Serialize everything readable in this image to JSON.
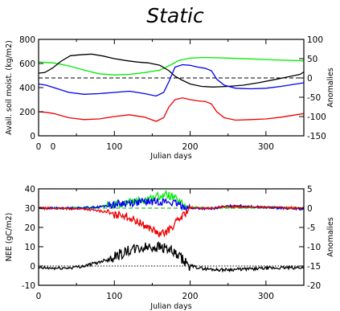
{
  "title": "Static",
  "chart_data": [
    {
      "type": "line",
      "name": "top-panel",
      "xlabel": "Julian days",
      "ylabel": "Avail. soil moist. (kg/m2)",
      "ylabel_right": "Anomalies",
      "xlim": [
        0,
        350
      ],
      "ylim": [
        0,
        800
      ],
      "ylim_right": [
        -150,
        100
      ],
      "x_ticks": [
        "0",
        "100",
        "200",
        "300"
      ],
      "extra_x_tick_label": "0",
      "y_ticks": [
        "0",
        "200",
        "400",
        "600",
        "800"
      ],
      "y_ticks_right": [
        "-150",
        "-100",
        "-50",
        "0",
        "50",
        "100"
      ],
      "reference_line": {
        "axis": "right",
        "value": 0,
        "style": "dashed",
        "color": "#000000"
      },
      "series": [
        {
          "color": "#00ee00",
          "axis": "left",
          "x": [
            0,
            20,
            40,
            60,
            80,
            100,
            120,
            140,
            160,
            175,
            185,
            200,
            220,
            250,
            280,
            310,
            350
          ],
          "y": [
            612,
            605,
            580,
            545,
            515,
            505,
            510,
            525,
            545,
            590,
            625,
            645,
            650,
            645,
            638,
            630,
            622
          ]
        },
        {
          "color": "#000000",
          "axis": "left",
          "x": [
            0,
            8,
            18,
            30,
            42,
            55,
            70,
            85,
            100,
            115,
            130,
            145,
            160,
            172,
            180,
            190,
            200,
            215,
            230,
            250,
            270,
            290,
            310,
            330,
            345,
            350
          ],
          "y": [
            520,
            525,
            560,
            620,
            665,
            672,
            678,
            662,
            640,
            625,
            612,
            605,
            585,
            540,
            495,
            460,
            430,
            410,
            405,
            410,
            420,
            440,
            465,
            490,
            510,
            530
          ]
        },
        {
          "color": "#0000ee",
          "axis": "left",
          "x": [
            0,
            10,
            20,
            40,
            60,
            80,
            100,
            120,
            140,
            155,
            165,
            172,
            180,
            190,
            200,
            210,
            220,
            228,
            235,
            245,
            260,
            280,
            300,
            320,
            340,
            350
          ],
          "y": [
            430,
            420,
            400,
            360,
            345,
            350,
            360,
            370,
            350,
            330,
            360,
            450,
            570,
            590,
            585,
            570,
            560,
            540,
            470,
            420,
            395,
            390,
            395,
            410,
            430,
            440
          ]
        },
        {
          "color": "#ee0000",
          "axis": "left",
          "x": [
            0,
            10,
            20,
            40,
            60,
            80,
            100,
            120,
            140,
            155,
            165,
            172,
            180,
            190,
            200,
            210,
            220,
            228,
            235,
            245,
            260,
            280,
            300,
            320,
            340,
            350
          ],
          "y": [
            200,
            195,
            185,
            150,
            135,
            140,
            160,
            175,
            155,
            120,
            150,
            240,
            300,
            315,
            300,
            290,
            285,
            265,
            200,
            150,
            130,
            135,
            140,
            155,
            175,
            185
          ]
        }
      ]
    },
    {
      "type": "line",
      "name": "bottom-panel",
      "xlabel": "Julian days",
      "ylabel": "NEE (gC/m2)",
      "ylabel_right": "Anomalies",
      "xlim": [
        0,
        350
      ],
      "ylim": [
        -10,
        40
      ],
      "ylim_right": [
        -20,
        5
      ],
      "x_ticks": [
        "0",
        "100",
        "200",
        "300"
      ],
      "y_ticks": [
        "-10",
        "0",
        "10",
        "20",
        "30",
        "40"
      ],
      "y_ticks_right": [
        "-20",
        "-15",
        "-10",
        "-5",
        "0",
        "5"
      ],
      "reference_lines": [
        {
          "axis": "right",
          "value": 0,
          "style": "dashed",
          "color": "#00aa00"
        },
        {
          "axis": "left",
          "value": 0,
          "style": "dotted",
          "color": "#000000"
        }
      ],
      "series": [
        {
          "color": "#00ee00",
          "axis": "right",
          "noisy": true,
          "x": [
            0,
            50,
            80,
            100,
            120,
            140,
            150,
            160,
            170,
            180,
            190,
            200,
            230,
            260,
            300,
            350
          ],
          "y": [
            0,
            0,
            0.3,
            1.0,
            1.5,
            2.2,
            2.8,
            3.2,
            3.5,
            2.5,
            1.0,
            0.2,
            0,
            0.3,
            0.2,
            0
          ]
        },
        {
          "color": "#0000ee",
          "axis": "right",
          "noisy": true,
          "x": [
            0,
            50,
            80,
            100,
            120,
            140,
            150,
            160,
            170,
            180,
            190,
            200,
            230,
            240,
            260,
            280,
            300,
            350
          ],
          "y": [
            0,
            0,
            0.3,
            1.0,
            1.4,
            1.6,
            1.7,
            1.8,
            1.6,
            1.2,
            0.6,
            0,
            -0.2,
            0.3,
            0.7,
            0.4,
            0.2,
            -0.3
          ]
        },
        {
          "color": "#ee0000",
          "axis": "right",
          "noisy": true,
          "x": [
            0,
            60,
            90,
            100,
            110,
            120,
            130,
            140,
            150,
            160,
            170,
            180,
            190,
            200,
            230,
            260,
            300,
            350
          ],
          "y": [
            0,
            -0.2,
            -1.0,
            -2.0,
            -1.5,
            -2.5,
            -3.5,
            -4.5,
            -5.5,
            -7.0,
            -6.0,
            -4.0,
            -2.0,
            0,
            0,
            0.5,
            0.2,
            0
          ]
        },
        {
          "color": "#000000",
          "axis": "left",
          "noisy": true,
          "x": [
            0,
            20,
            40,
            60,
            80,
            100,
            120,
            140,
            150,
            160,
            170,
            180,
            190,
            200,
            220,
            240,
            260,
            280,
            300,
            320,
            350
          ],
          "y": [
            -1,
            -1.2,
            -1.0,
            0,
            2,
            5,
            8,
            9.5,
            10,
            10,
            9,
            6,
            3,
            0,
            -1.5,
            -2,
            -1.8,
            -1.5,
            -1.2,
            -1.0,
            -0.8
          ]
        }
      ]
    }
  ]
}
